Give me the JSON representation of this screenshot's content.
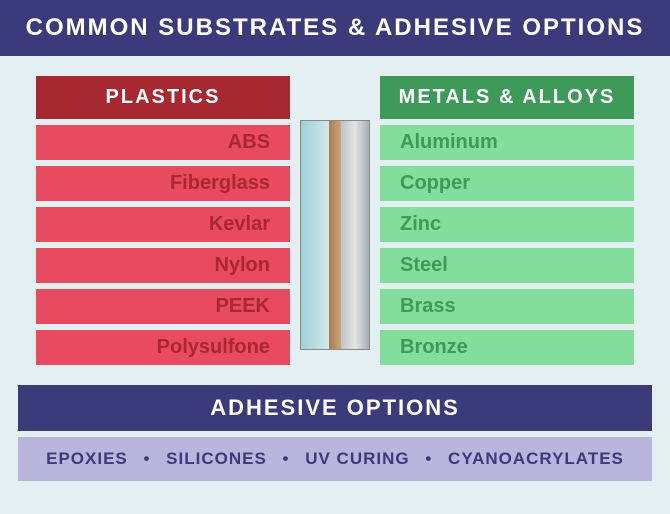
{
  "title": "COMMON SUBSTRATES & ADHESIVE OPTIONS",
  "plastics": {
    "header": "PLASTICS",
    "items": [
      "ABS",
      "Fiberglass",
      "Kevlar",
      "Nylon",
      "PEEK",
      "Polysulfone"
    ]
  },
  "metals": {
    "header": "METALS & ALLOYS",
    "items": [
      "Aluminum",
      "Copper",
      "Zinc",
      "Steel",
      "Brass",
      "Bronze"
    ]
  },
  "adhesive": {
    "header": "ADHESIVE OPTIONS",
    "options": [
      "EPOXIES",
      "SILICONES",
      "UV CURING",
      "CYANOACRYLATES"
    ]
  },
  "colors": {
    "header_bg": "#3b3a7a",
    "plastics_header_bg": "#a82831",
    "plastics_item_bg": "#e84a5f",
    "plastics_item_fg": "#a82831",
    "metals_header_bg": "#3e9a58",
    "metals_item_bg": "#83dd9c",
    "metals_item_fg": "#3e9a58",
    "adh_list_bg": "#b9b5dd",
    "page_bg": "#e4eff1"
  }
}
